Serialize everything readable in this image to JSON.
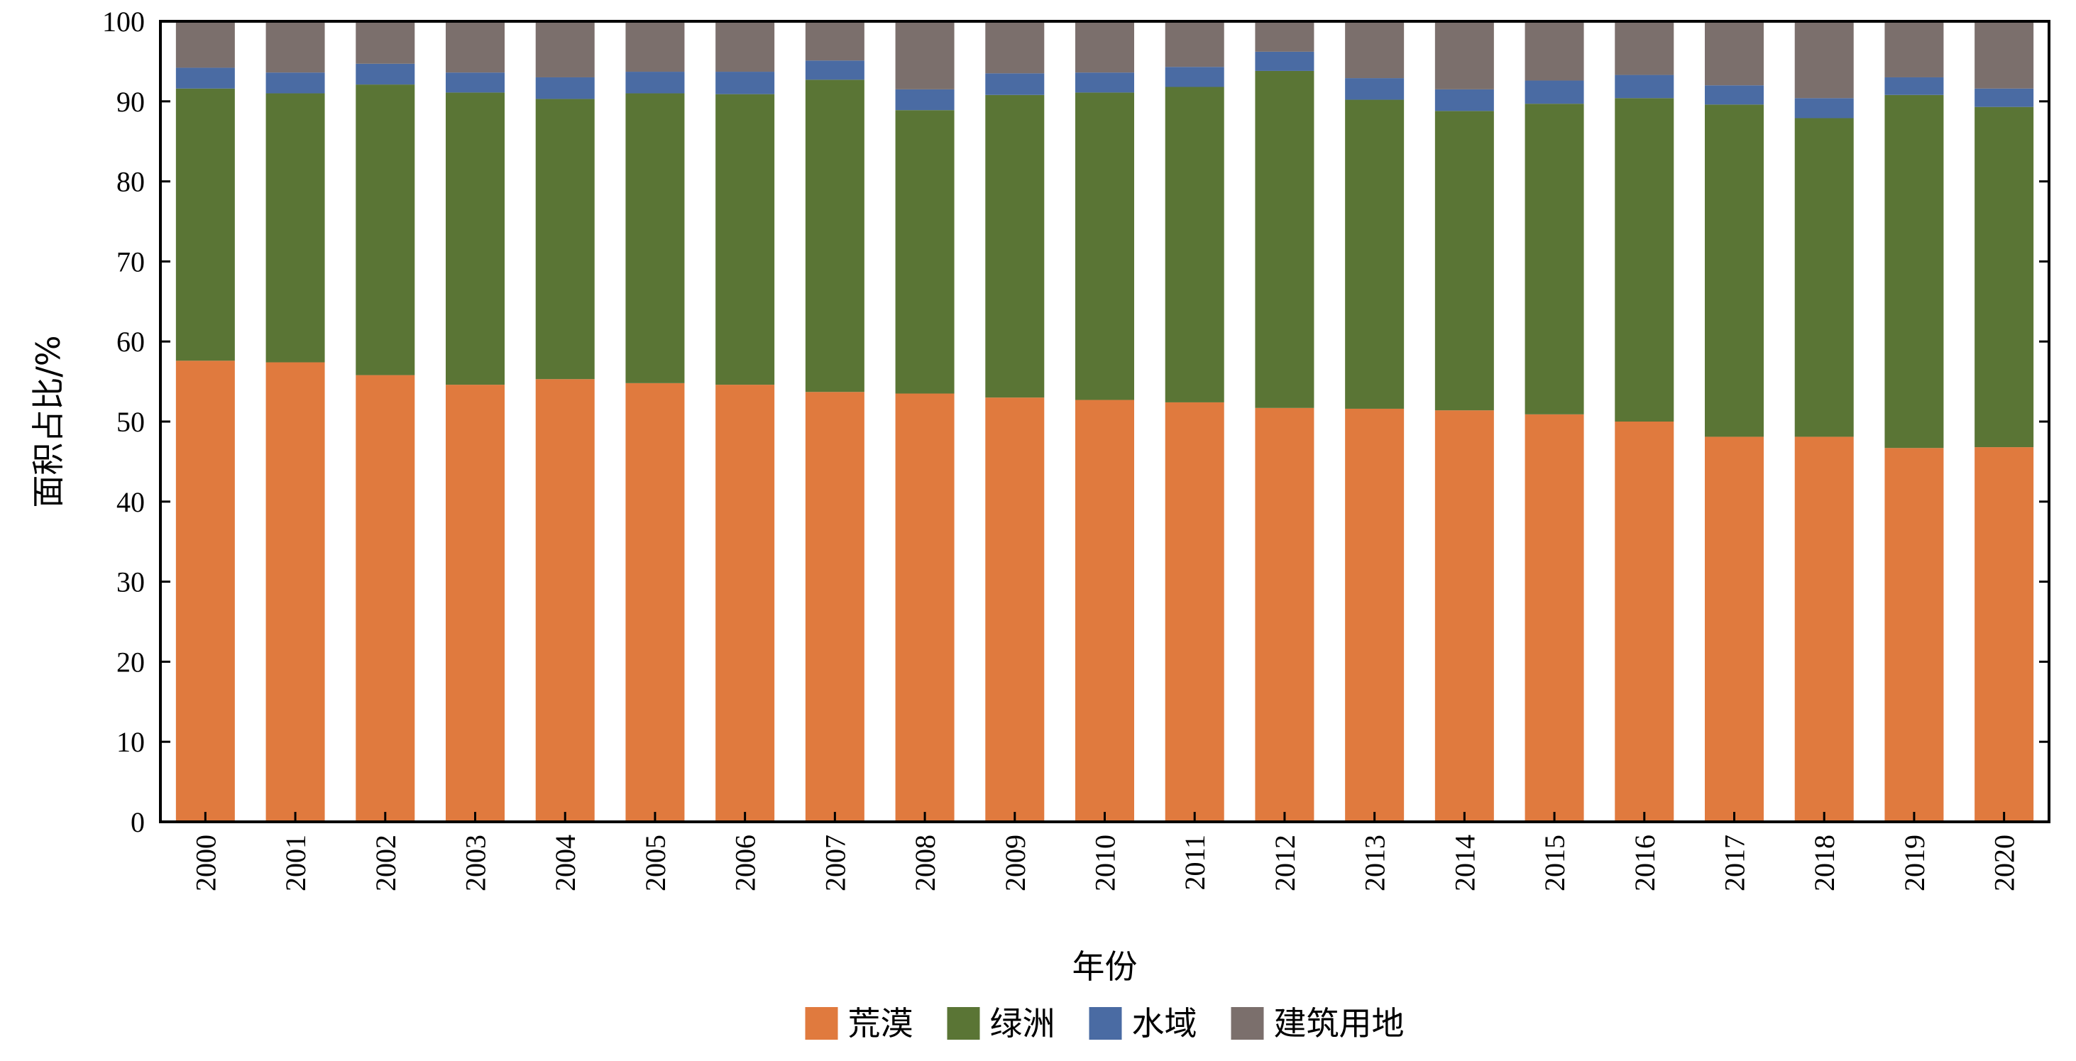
{
  "chart_data": {
    "type": "bar",
    "stacked": true,
    "title": "",
    "xlabel": "年份",
    "ylabel": "面积占比/%",
    "ylim": [
      0,
      100
    ],
    "yticks": [
      "0",
      "10",
      "20",
      "30",
      "40",
      "50",
      "60",
      "70",
      "80",
      "90",
      "100"
    ],
    "grid": false,
    "legend_position": "bottom",
    "categories": [
      "2000",
      "2001",
      "2002",
      "2003",
      "2004",
      "2005",
      "2006",
      "2007",
      "2008",
      "2009",
      "2010",
      "2011",
      "2012",
      "2013",
      "2014",
      "2015",
      "2016",
      "2017",
      "2018",
      "2019",
      "2020"
    ],
    "series": [
      {
        "name": "荒漠",
        "color": "#E07A3E",
        "values": [
          57.6,
          57.4,
          55.8,
          54.6,
          55.3,
          54.8,
          54.6,
          53.7,
          53.5,
          53.0,
          52.7,
          52.4,
          51.7,
          51.6,
          51.4,
          50.9,
          50.0,
          48.1,
          48.1,
          46.7,
          46.8
        ]
      },
      {
        "name": "绿洲",
        "color": "#5A7535",
        "values": [
          34.0,
          33.6,
          36.3,
          36.5,
          35.0,
          36.2,
          36.3,
          39.0,
          35.4,
          37.8,
          38.4,
          39.4,
          42.1,
          38.6,
          37.4,
          38.8,
          40.4,
          41.5,
          39.8,
          44.1,
          42.5
        ]
      },
      {
        "name": "水域",
        "color": "#4A6BA3",
        "values": [
          2.6,
          2.6,
          2.6,
          2.5,
          2.7,
          2.7,
          2.8,
          2.4,
          2.6,
          2.7,
          2.5,
          2.5,
          2.4,
          2.7,
          2.7,
          2.9,
          2.9,
          2.4,
          2.5,
          2.2,
          2.3
        ]
      },
      {
        "name": "建筑用地",
        "color": "#7B6F6C",
        "values": [
          5.8,
          6.4,
          5.3,
          6.4,
          7.0,
          6.3,
          6.3,
          4.9,
          8.5,
          6.5,
          6.4,
          5.7,
          3.8,
          7.1,
          8.5,
          7.4,
          6.7,
          8.0,
          9.6,
          7.0,
          8.4
        ]
      }
    ]
  }
}
